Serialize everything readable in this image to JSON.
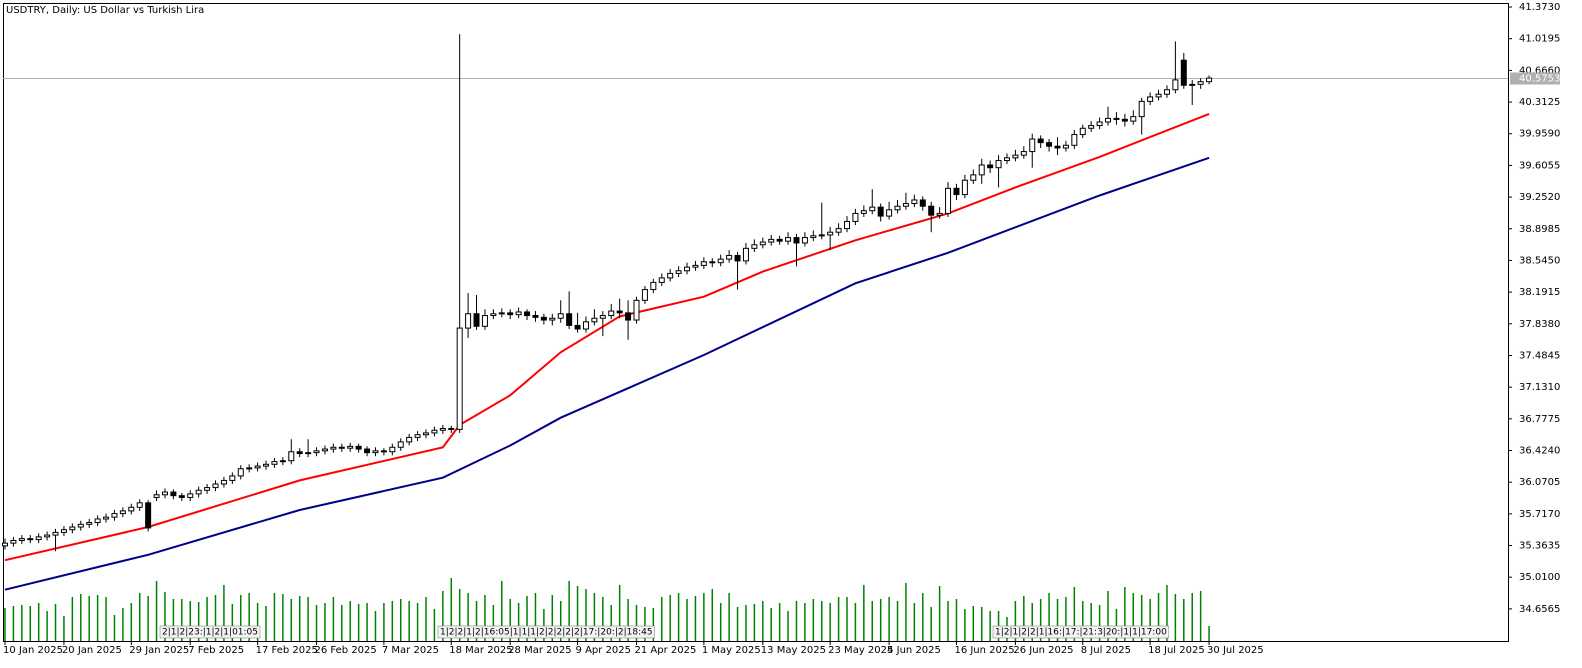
{
  "chart_data": {
    "type": "candlestick",
    "title": "USDTRY, Daily:  US Dollar vs Turkish Lira",
    "categories": [
      "10 Jan 2025",
      null,
      null,
      null,
      null,
      null,
      null,
      "20 Jan 2025",
      null,
      null,
      null,
      null,
      null,
      null,
      null,
      "29 Jan 2025",
      null,
      null,
      null,
      null,
      null,
      null,
      "7 Feb 2025",
      null,
      null,
      null,
      null,
      null,
      null,
      null,
      "17 Feb 2025",
      null,
      null,
      null,
      null,
      null,
      null,
      "26 Feb 2025",
      null,
      null,
      null,
      null,
      null,
      null,
      null,
      "7 Mar 2025",
      null,
      null,
      null,
      null,
      null,
      null,
      null,
      "18 Mar 2025",
      null,
      null,
      null,
      null,
      null,
      null,
      "28 Mar 2025",
      null,
      null,
      null,
      null,
      null,
      null,
      null,
      "9 Apr 2025",
      null,
      null,
      null,
      null,
      null,
      null,
      "21 Apr 2025",
      null,
      null,
      null,
      null,
      null,
      null,
      null,
      "1 May 2025",
      null,
      null,
      null,
      null,
      null,
      null,
      "13 May 2025",
      null,
      null,
      null,
      null,
      null,
      null,
      null,
      "23 May 2025",
      null,
      null,
      null,
      null,
      null,
      null,
      "4 Jun 2025",
      null,
      null,
      null,
      null,
      null,
      null,
      null,
      "16 Jun 2025",
      null,
      null,
      null,
      null,
      null,
      null,
      "26 Jun 2025",
      null,
      null,
      null,
      null,
      null,
      null,
      null,
      "8 Jul 2025",
      null,
      null,
      null,
      null,
      null,
      null,
      null,
      "18 Jul 2025",
      null,
      null,
      null,
      null,
      null,
      null,
      "30 Jul 2025"
    ],
    "ohlc": [
      [
        35.36,
        35.44,
        35.32,
        35.39
      ],
      [
        35.39,
        35.46,
        35.35,
        35.42
      ],
      [
        35.42,
        35.48,
        35.38,
        35.44
      ],
      [
        35.44,
        35.48,
        35.39,
        35.43
      ],
      [
        35.43,
        35.5,
        35.39,
        35.46
      ],
      [
        35.46,
        35.52,
        35.42,
        35.48
      ],
      [
        35.48,
        35.55,
        35.3,
        35.51
      ],
      [
        35.51,
        35.58,
        35.47,
        35.54
      ],
      [
        35.54,
        35.61,
        35.5,
        35.57
      ],
      [
        35.57,
        35.64,
        35.53,
        35.6
      ],
      [
        35.6,
        35.66,
        35.56,
        35.62
      ],
      [
        35.62,
        35.7,
        35.58,
        35.66
      ],
      [
        35.66,
        35.72,
        35.62,
        35.68
      ],
      [
        35.68,
        35.76,
        35.64,
        35.72
      ],
      [
        35.72,
        35.79,
        35.68,
        35.75
      ],
      [
        35.75,
        35.83,
        35.71,
        35.79
      ],
      [
        35.79,
        35.88,
        35.75,
        35.84
      ],
      [
        35.84,
        35.87,
        35.52,
        35.56
      ],
      [
        35.9,
        35.98,
        35.86,
        35.93
      ],
      [
        35.93,
        36.0,
        35.89,
        35.96
      ],
      [
        35.96,
        35.99,
        35.88,
        35.92
      ],
      [
        35.92,
        35.95,
        35.86,
        35.9
      ],
      [
        35.9,
        35.98,
        35.86,
        35.94
      ],
      [
        35.94,
        36.02,
        35.9,
        35.98
      ],
      [
        35.98,
        36.05,
        35.94,
        36.01
      ],
      [
        36.01,
        36.09,
        35.97,
        36.05
      ],
      [
        36.05,
        36.13,
        36.01,
        36.09
      ],
      [
        36.09,
        36.18,
        36.05,
        36.14
      ],
      [
        36.14,
        36.26,
        36.1,
        36.22
      ],
      [
        36.22,
        36.27,
        36.18,
        36.23
      ],
      [
        36.23,
        36.29,
        36.19,
        36.25
      ],
      [
        36.25,
        36.31,
        36.21,
        36.27
      ],
      [
        36.27,
        36.34,
        36.23,
        36.3
      ],
      [
        36.3,
        36.35,
        36.26,
        36.31
      ],
      [
        36.31,
        36.55,
        36.27,
        36.41
      ],
      [
        36.41,
        36.45,
        36.35,
        36.39
      ],
      [
        36.39,
        36.55,
        36.35,
        36.4
      ],
      [
        36.4,
        36.46,
        36.36,
        36.42
      ],
      [
        36.42,
        36.48,
        36.38,
        36.44
      ],
      [
        36.44,
        36.5,
        36.4,
        36.46
      ],
      [
        36.46,
        36.5,
        36.41,
        36.45
      ],
      [
        36.45,
        36.51,
        36.41,
        36.47
      ],
      [
        36.47,
        36.5,
        36.4,
        36.44
      ],
      [
        36.44,
        36.47,
        36.36,
        36.4
      ],
      [
        36.4,
        36.46,
        36.36,
        36.42
      ],
      [
        36.42,
        36.45,
        36.37,
        36.41
      ],
      [
        36.41,
        36.5,
        36.37,
        36.46
      ],
      [
        36.46,
        36.56,
        36.42,
        36.52
      ],
      [
        36.52,
        36.61,
        36.48,
        36.57
      ],
      [
        36.57,
        36.64,
        36.53,
        36.6
      ],
      [
        36.6,
        36.66,
        36.56,
        36.62
      ],
      [
        36.62,
        36.69,
        36.58,
        36.65
      ],
      [
        36.65,
        36.71,
        36.61,
        36.67
      ],
      [
        36.67,
        36.7,
        36.62,
        36.66
      ],
      [
        36.66,
        41.07,
        36.62,
        37.79
      ],
      [
        37.79,
        38.18,
        37.68,
        37.95
      ],
      [
        37.95,
        38.16,
        37.77,
        37.81
      ],
      [
        37.81,
        38.0,
        37.77,
        37.93
      ],
      [
        37.93,
        38.0,
        37.89,
        37.95
      ],
      [
        37.95,
        38.01,
        37.91,
        37.96
      ],
      [
        37.96,
        38.0,
        37.89,
        37.94
      ],
      [
        37.94,
        38.02,
        37.9,
        37.97
      ],
      [
        37.97,
        38.0,
        37.88,
        37.93
      ],
      [
        37.93,
        37.98,
        37.86,
        37.91
      ],
      [
        37.91,
        37.95,
        37.83,
        37.88
      ],
      [
        37.88,
        37.95,
        37.82,
        37.9
      ],
      [
        37.9,
        38.1,
        37.85,
        37.95
      ],
      [
        37.95,
        38.2,
        37.78,
        37.82
      ],
      [
        37.82,
        37.96,
        37.74,
        37.78
      ],
      [
        37.78,
        37.92,
        37.74,
        37.86
      ],
      [
        37.86,
        38.0,
        37.82,
        37.9
      ],
      [
        37.9,
        37.98,
        37.7,
        37.93
      ],
      [
        37.93,
        38.06,
        37.89,
        37.98
      ],
      [
        37.98,
        38.12,
        37.9,
        37.96
      ],
      [
        37.96,
        38.1,
        37.66,
        37.88
      ],
      [
        37.88,
        38.14,
        37.84,
        38.1
      ],
      [
        38.1,
        38.26,
        38.06,
        38.22
      ],
      [
        38.22,
        38.34,
        38.18,
        38.3
      ],
      [
        38.3,
        38.4,
        38.26,
        38.35
      ],
      [
        38.35,
        38.45,
        38.31,
        38.4
      ],
      [
        38.4,
        38.48,
        38.36,
        38.43
      ],
      [
        38.43,
        38.52,
        38.39,
        38.47
      ],
      [
        38.47,
        38.54,
        38.43,
        38.49
      ],
      [
        38.49,
        38.58,
        38.45,
        38.53
      ],
      [
        38.53,
        38.57,
        38.47,
        38.52
      ],
      [
        38.52,
        38.61,
        38.48,
        38.56
      ],
      [
        38.56,
        38.66,
        38.52,
        38.6
      ],
      [
        38.6,
        38.64,
        38.22,
        38.54
      ],
      [
        38.54,
        38.74,
        38.5,
        38.68
      ],
      [
        38.68,
        38.78,
        38.64,
        38.72
      ],
      [
        38.72,
        38.8,
        38.68,
        38.75
      ],
      [
        38.75,
        38.83,
        38.71,
        38.78
      ],
      [
        38.78,
        38.82,
        38.72,
        38.76
      ],
      [
        38.76,
        38.86,
        38.72,
        38.8
      ],
      [
        38.8,
        38.84,
        38.48,
        38.74
      ],
      [
        38.74,
        38.86,
        38.7,
        38.8
      ],
      [
        38.8,
        38.88,
        38.76,
        38.82
      ],
      [
        38.82,
        39.19,
        38.78,
        38.83
      ],
      [
        38.83,
        38.92,
        38.66,
        38.86
      ],
      [
        38.86,
        38.96,
        38.82,
        38.9
      ],
      [
        38.9,
        39.04,
        38.86,
        38.98
      ],
      [
        38.98,
        39.12,
        38.94,
        39.07
      ],
      [
        39.07,
        39.16,
        39.03,
        39.1
      ],
      [
        39.1,
        39.34,
        39.06,
        39.14
      ],
      [
        39.14,
        39.18,
        38.98,
        39.04
      ],
      [
        39.04,
        39.2,
        39.0,
        39.11
      ],
      [
        39.11,
        39.22,
        39.07,
        39.15
      ],
      [
        39.15,
        39.3,
        39.11,
        39.18
      ],
      [
        39.18,
        39.28,
        39.14,
        39.22
      ],
      [
        39.22,
        39.26,
        39.1,
        39.15
      ],
      [
        39.15,
        39.2,
        38.86,
        39.05
      ],
      [
        39.05,
        39.14,
        39.01,
        39.07
      ],
      [
        39.07,
        39.42,
        39.03,
        39.35
      ],
      [
        39.35,
        39.4,
        39.22,
        39.28
      ],
      [
        39.28,
        39.5,
        39.24,
        39.44
      ],
      [
        39.44,
        39.56,
        39.4,
        39.5
      ],
      [
        39.5,
        39.68,
        39.4,
        39.61
      ],
      [
        39.61,
        39.66,
        39.52,
        39.58
      ],
      [
        39.58,
        39.72,
        39.36,
        39.66
      ],
      [
        39.66,
        39.74,
        39.62,
        39.69
      ],
      [
        39.69,
        39.78,
        39.65,
        39.72
      ],
      [
        39.72,
        39.82,
        39.68,
        39.76
      ],
      [
        39.76,
        39.96,
        39.58,
        39.9
      ],
      [
        39.9,
        39.94,
        39.8,
        39.86
      ],
      [
        39.86,
        39.9,
        39.76,
        39.82
      ],
      [
        39.82,
        39.92,
        39.72,
        39.8
      ],
      [
        39.8,
        39.88,
        39.76,
        39.83
      ],
      [
        39.83,
        40.0,
        39.79,
        39.95
      ],
      [
        39.95,
        40.06,
        39.91,
        40.02
      ],
      [
        40.02,
        40.1,
        39.98,
        40.05
      ],
      [
        40.05,
        40.14,
        40.01,
        40.09
      ],
      [
        40.09,
        40.26,
        40.05,
        40.13
      ],
      [
        40.13,
        40.2,
        40.06,
        40.12
      ],
      [
        40.12,
        40.18,
        40.04,
        40.1
      ],
      [
        40.1,
        40.22,
        40.06,
        40.15
      ],
      [
        40.15,
        40.36,
        39.95,
        40.32
      ],
      [
        40.32,
        40.42,
        40.28,
        40.37
      ],
      [
        40.37,
        40.45,
        40.33,
        40.4
      ],
      [
        40.4,
        40.5,
        40.36,
        40.45
      ],
      [
        40.45,
        40.99,
        40.41,
        40.56
      ],
      [
        40.78,
        40.86,
        40.46,
        40.5
      ],
      [
        40.5,
        40.56,
        40.28,
        40.51
      ],
      [
        40.51,
        40.58,
        40.46,
        40.54
      ],
      [
        40.54,
        40.61,
        40.51,
        40.58
      ]
    ],
    "up_color": "#ffffff",
    "down_color": "#000000",
    "moving_averages": [
      {
        "color": "#ff0000",
        "x": [
          0,
          17,
          35,
          52,
          54,
          60,
          66,
          73,
          83,
          90,
          101,
          112,
          120,
          130,
          143
        ],
        "values": [
          35.2,
          35.57,
          36.09,
          36.46,
          36.71,
          37.04,
          37.52,
          37.92,
          38.14,
          38.42,
          38.77,
          39.07,
          39.36,
          39.7,
          40.18
        ]
      },
      {
        "color": "#00008b",
        "x": [
          0,
          17,
          35,
          52,
          60,
          66,
          83,
          101,
          112,
          130,
          143
        ],
        "values": [
          34.87,
          35.26,
          35.76,
          36.12,
          36.48,
          36.79,
          37.49,
          38.29,
          38.63,
          39.27,
          39.69
        ]
      }
    ],
    "volume": [
      33,
      35,
      36,
      35,
      38,
      30,
      37,
      25,
      44,
      47,
      45,
      46,
      44,
      26,
      33,
      38,
      48,
      45,
      60,
      49,
      42,
      42,
      40,
      39,
      44,
      46,
      56,
      37,
      46,
      48,
      38,
      35,
      48,
      47,
      42,
      45,
      44,
      36,
      38,
      44,
      36,
      40,
      37,
      38,
      30,
      38,
      40,
      42,
      40,
      38,
      44,
      32,
      50,
      63,
      52,
      48,
      40,
      46,
      36,
      60,
      42,
      38,
      45,
      48,
      32,
      46,
      40,
      60,
      55,
      52,
      48,
      44,
      36,
      56,
      42,
      36,
      34,
      33,
      44,
      46,
      48,
      42,
      45,
      48,
      52,
      38,
      48,
      34,
      36,
      37,
      40,
      33,
      38,
      30,
      40,
      38,
      42,
      40,
      38,
      44,
      44,
      38,
      56,
      40,
      42,
      44,
      40,
      58,
      38,
      48,
      34,
      55,
      40,
      42,
      32,
      35,
      34,
      30,
      30,
      24,
      40,
      45,
      38,
      42,
      48,
      42,
      44,
      54,
      40,
      38,
      36,
      50,
      32,
      54,
      48,
      46,
      42,
      48,
      56,
      47,
      42,
      48,
      50,
      15
    ],
    "volume_color": "#008000",
    "current_price": 40.5753,
    "ylim": [
      34.298,
      41.418
    ],
    "yticks": [
      {
        "value": 41.373,
        "label": "41.3730"
      },
      {
        "value": 41.0195,
        "label": "41.0195"
      },
      {
        "value": 40.666,
        "label": "40.6660"
      },
      {
        "value": 40.3125,
        "label": "40.3125"
      },
      {
        "value": 39.959,
        "label": "39.9590"
      },
      {
        "value": 39.6055,
        "label": "39.6055"
      },
      {
        "value": 39.252,
        "label": "39.2520"
      },
      {
        "value": 38.8985,
        "label": "38.8985"
      },
      {
        "value": 38.545,
        "label": "38.5450"
      },
      {
        "value": 38.1915,
        "label": "38.1915"
      },
      {
        "value": 37.838,
        "label": "37.8380"
      },
      {
        "value": 37.4845,
        "label": "37.4845"
      },
      {
        "value": 37.131,
        "label": "37.1310"
      },
      {
        "value": 36.7775,
        "label": "36.7775"
      },
      {
        "value": 36.424,
        "label": "36.4240"
      },
      {
        "value": 36.0705,
        "label": "36.0705"
      },
      {
        "value": 35.717,
        "label": "35.7170"
      },
      {
        "value": 35.3635,
        "label": "35.3635"
      },
      {
        "value": 35.01,
        "label": "35.0100"
      },
      {
        "value": 34.6565,
        "label": "34.6565"
      }
    ],
    "grid": false,
    "event_markers": [
      "2|1|2|23:|1|2|1|01:05",
      "1|2|2|1|2|16:05|1|1|1|2|2|2|2|2|17:|20:|2|18:45",
      "1|2|1|2|2|1|16:|17:|21:3|20:|1|1|17:00"
    ]
  }
}
